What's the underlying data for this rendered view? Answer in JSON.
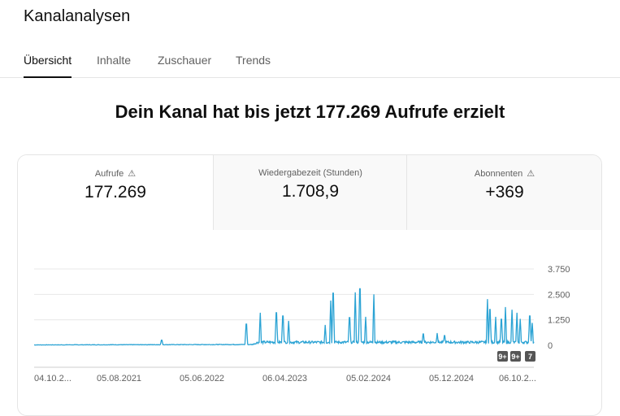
{
  "header": {
    "title": "Kanalanalysen"
  },
  "tabs": [
    "Übersicht",
    "Inhalte",
    "Zuschauer",
    "Trends"
  ],
  "headline": "Dein Kanal hat bis jetzt 177.269 Aufrufe erzielt",
  "metrics": [
    {
      "label": "Aufrufe",
      "value": "177.269",
      "warning": "⚠"
    },
    {
      "label": "Wiedergabezeit (Stunden)",
      "value": "1.708,9"
    },
    {
      "label": "Abonnenten",
      "value": "+369",
      "warning": "⚠"
    }
  ],
  "colors": {
    "line": "#2ba3d4"
  },
  "chart_data": {
    "type": "line",
    "ylabel": "Aufrufe",
    "ylim": [
      0,
      3750
    ],
    "yticks": [
      "3.750",
      "2.500",
      "1.250",
      "0"
    ],
    "ytick_values": [
      3750,
      2500,
      1250,
      0
    ],
    "xticks": [
      "04.10.2...",
      "05.08.2021",
      "05.06.2022",
      "06.04.2023",
      "05.02.2024",
      "05.12.2024",
      "06.10.2..."
    ],
    "x_days_range": [
      0,
      1830
    ],
    "baseline": [
      [
        0,
        20
      ],
      [
        800,
        40
      ],
      [
        820,
        150
      ],
      [
        1830,
        150
      ]
    ],
    "spikes": [
      [
        467,
        320
      ],
      [
        777,
        1300
      ],
      [
        828,
        1600
      ],
      [
        887,
        2000
      ],
      [
        911,
        1800
      ],
      [
        932,
        1200
      ],
      [
        1066,
        1000
      ],
      [
        1086,
        2200
      ],
      [
        1095,
        3200
      ],
      [
        1155,
        1700
      ],
      [
        1176,
        2600
      ],
      [
        1193,
        3470
      ],
      [
        1214,
        1400
      ],
      [
        1244,
        2500
      ],
      [
        1425,
        700
      ],
      [
        1476,
        600
      ],
      [
        1503,
        600
      ],
      [
        1660,
        2270
      ],
      [
        1669,
        2200
      ],
      [
        1690,
        1400
      ],
      [
        1711,
        1600
      ],
      [
        1726,
        1880
      ],
      [
        1750,
        1750
      ],
      [
        1768,
        1600
      ],
      [
        1780,
        1300
      ],
      [
        1815,
        1800
      ],
      [
        1824,
        1100
      ]
    ],
    "annotations": [
      "9+",
      "9+",
      "7"
    ]
  }
}
